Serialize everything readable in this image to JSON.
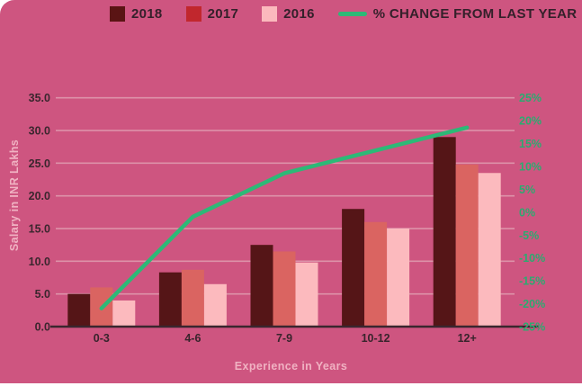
{
  "legend": {
    "items": [
      {
        "label": "2018",
        "color": "#5a1414",
        "bar_color": "#551517"
      },
      {
        "label": "2017",
        "color": "#c1272d",
        "bar_color": "#da6461"
      },
      {
        "label": "2016",
        "color": "#fbb9bd",
        "bar_color": "#fcbabe"
      }
    ],
    "line_label": "% CHANGE FROM LAST YEAR",
    "line_color": "#2db977"
  },
  "chart_data": {
    "type": "bar",
    "overlay": "line",
    "categories": [
      "0-3",
      "4-6",
      "7-9",
      "10-12",
      "12+"
    ],
    "series": [
      {
        "name": "2018",
        "values": [
          5.0,
          8.3,
          12.5,
          18.0,
          29.0
        ]
      },
      {
        "name": "2017",
        "values": [
          6.0,
          8.7,
          11.5,
          16.0,
          24.8
        ]
      },
      {
        "name": "2016",
        "values": [
          4.0,
          6.5,
          9.8,
          15.0,
          23.5
        ]
      }
    ],
    "line_series": {
      "name": "% CHANGE FROM LAST YEAR",
      "axis": "right",
      "values": [
        -21,
        -1,
        8.5,
        13.5,
        18.5
      ]
    },
    "title": "",
    "xlabel": "Experience in Years",
    "ylabel": "Salary in INR Lakhs",
    "ylim": [
      0,
      35
    ],
    "ytick_step": 5,
    "y2lim": [
      -25,
      25
    ],
    "y2tick_step": 5,
    "y2_suffix": "%",
    "grid": true,
    "legend_position": "top"
  },
  "colors": {
    "background": "#ce5580",
    "gridline": "#dd92a9",
    "axis_line": "#3a262e",
    "tick_left": "#3b262e",
    "tick_right": "#2bab70",
    "tick_x": "#38242c",
    "axis_title": "#f0b2c2"
  }
}
